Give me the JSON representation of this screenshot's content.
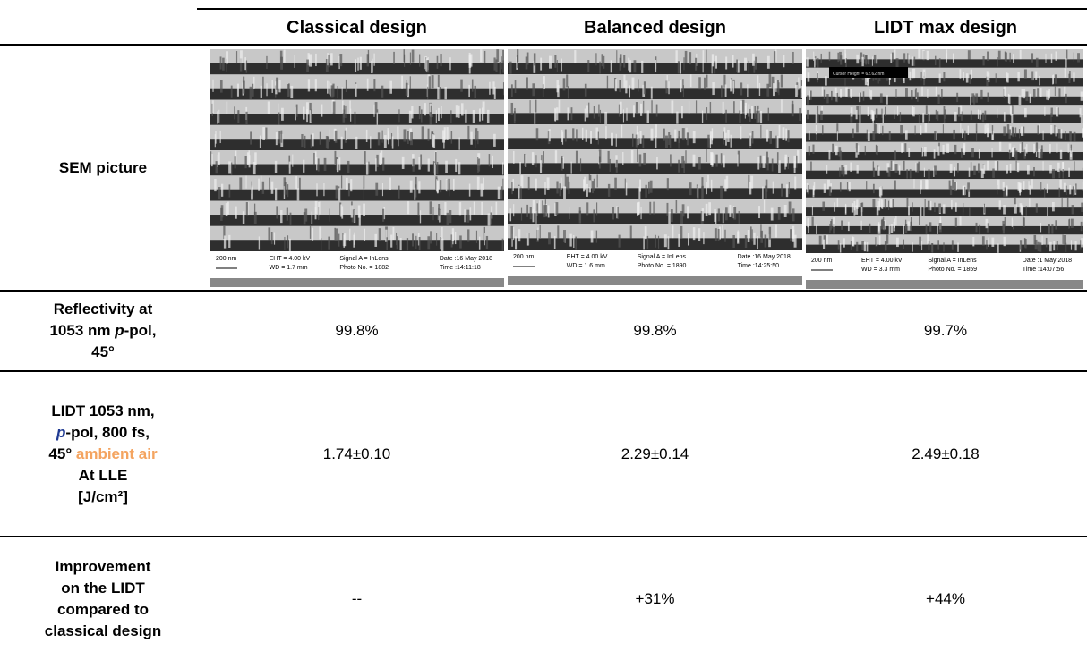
{
  "header": {
    "columns": [
      "Classical design",
      "Balanced design",
      "LIDT max design"
    ]
  },
  "sem": {
    "label": "SEM picture",
    "images": [
      {
        "scale": "200 nm",
        "eht": "EHT = 4.00 kV",
        "wd": "WD = 1.7 mm",
        "signal": "Signal A = InLens",
        "photo": "Photo No. = 1882",
        "date": "Date :16 May 2018",
        "time": "Time :14:11:18"
      },
      {
        "scale": "200 nm",
        "eht": "EHT = 4.00 kV",
        "wd": "WD = 1.6 mm",
        "signal": "Signal A = InLens",
        "photo": "Photo No. = 1890",
        "date": "Date :16 May 2018",
        "time": "Time :14:25:50"
      },
      {
        "cursor": "Cursor Height = 62.62 nm",
        "scale": "200 nm",
        "eht": "EHT = 4.00 kV",
        "wd": "WD = 3.3 mm",
        "signal": "Signal A = InLens",
        "photo": "Photo No. = 1859",
        "date": "Date :1 May 2018",
        "time": "Time :14:07:56"
      }
    ]
  },
  "rows": [
    {
      "label": [
        "Reflectivity at",
        "1053 nm ",
        "p",
        "-pol,",
        "45°"
      ],
      "values": [
        "99.8%",
        "99.8%",
        "99.7%"
      ]
    },
    {
      "label": [
        "LIDT 1053 nm,",
        "p",
        "-pol, 800 fs,",
        "45°",
        "ambient air",
        "At LLE",
        "[J/cm²]"
      ],
      "values": [
        "1.74±0.10",
        "2.29±0.14",
        "2.49±0.18"
      ]
    },
    {
      "label": [
        "Improvement",
        "on the LIDT",
        "compared to",
        "classical design"
      ],
      "values": [
        "--",
        "+31%",
        "+44%"
      ]
    }
  ]
}
